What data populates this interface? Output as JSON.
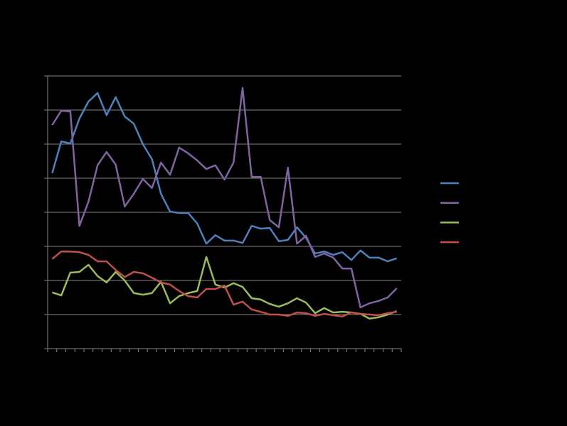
{
  "chart_data": {
    "type": "line",
    "categories": [
      null,
      null,
      null,
      null,
      null,
      null,
      null,
      null,
      null,
      null,
      null,
      null,
      null,
      null,
      null,
      null,
      null,
      null,
      null,
      null,
      null,
      null,
      null,
      null,
      null,
      null,
      null,
      null,
      null,
      null,
      null,
      null,
      null,
      null,
      null,
      null,
      null,
      null,
      null
    ],
    "series": [
      {
        "color": "#4f81bd",
        "values": [
          5.15,
          6.08,
          6.02,
          6.75,
          7.25,
          7.5,
          6.85,
          7.38,
          6.81,
          6.6,
          6.0,
          5.56,
          4.54,
          4.02,
          3.98,
          3.98,
          3.67,
          3.08,
          3.33,
          3.17,
          3.17,
          3.1,
          3.6,
          3.52,
          3.54,
          3.15,
          3.19,
          3.56,
          3.25,
          2.79,
          2.85,
          2.75,
          2.83,
          2.6,
          2.88,
          2.67,
          2.67,
          2.56,
          2.65
        ]
      },
      {
        "color": "#8064a2",
        "values": [
          6.56,
          6.98,
          6.96,
          3.6,
          4.31,
          5.38,
          5.77,
          5.4,
          4.17,
          4.54,
          4.98,
          4.71,
          5.46,
          5.1,
          5.9,
          5.73,
          5.52,
          5.27,
          5.38,
          4.96,
          5.46,
          7.65,
          5.04,
          5.04,
          3.77,
          3.56,
          5.31,
          3.08,
          3.31,
          2.69,
          2.79,
          2.67,
          2.35,
          2.35,
          1.21,
          1.33,
          1.4,
          1.5,
          1.77
        ]
      },
      {
        "color": "#9bbb59",
        "values": [
          1.65,
          1.56,
          2.23,
          2.25,
          2.46,
          2.13,
          1.94,
          2.25,
          2.0,
          1.63,
          1.58,
          1.63,
          1.96,
          1.33,
          1.54,
          1.63,
          1.69,
          2.69,
          1.88,
          1.79,
          1.92,
          1.81,
          1.48,
          1.44,
          1.31,
          1.23,
          1.33,
          1.48,
          1.35,
          1.04,
          1.19,
          1.06,
          1.08,
          1.06,
          1.02,
          0.88,
          0.92,
          1.0,
          1.1
        ]
      },
      {
        "color": "#c0504d",
        "values": [
          2.63,
          2.85,
          2.85,
          2.83,
          2.75,
          2.56,
          2.56,
          2.31,
          2.1,
          2.25,
          2.21,
          2.08,
          1.94,
          1.88,
          1.69,
          1.54,
          1.5,
          1.75,
          1.75,
          1.85,
          1.29,
          1.38,
          1.15,
          1.08,
          1.0,
          1.0,
          0.96,
          1.06,
          1.04,
          0.96,
          1.02,
          0.98,
          0.94,
          1.06,
          1.02,
          1.0,
          0.98,
          1.04,
          1.08
        ]
      }
    ],
    "ylim": [
      0,
      8
    ],
    "yticks": [
      0,
      1,
      2,
      3,
      4,
      5,
      6,
      7,
      8
    ],
    "grid": true,
    "legend": "right"
  }
}
